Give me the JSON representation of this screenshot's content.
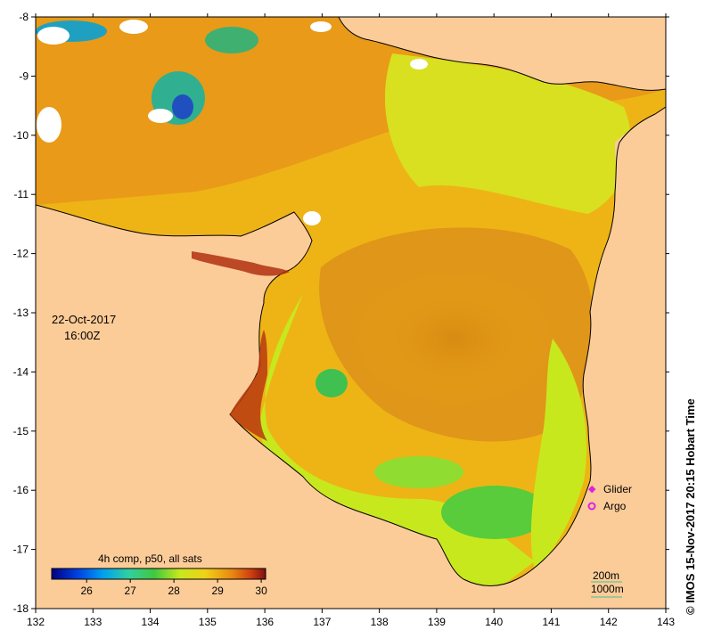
{
  "map": {
    "date": "22-Oct-2017",
    "time": "16:00Z",
    "credit": "© IMOS 15-Nov-2017 20:15 Hobart Time",
    "colorbar": {
      "title": "4h comp, p50, all sats",
      "ticks": [
        "26",
        "27",
        "28",
        "29",
        "30"
      ],
      "tick_values": [
        26,
        27,
        28,
        29,
        30
      ],
      "min": 25.2,
      "max": 30.1
    },
    "legend": {
      "glider": "Glider",
      "argo": "Argo",
      "glider_color": "#e020e0",
      "argo_color": "#e020e0"
    },
    "contours": {
      "shallow": "200m",
      "deep": "1000m",
      "contour_color": "#40c0a0"
    },
    "axes": {
      "lon_ticks": [
        "132",
        "133",
        "134",
        "135",
        "136",
        "137",
        "138",
        "139",
        "140",
        "141",
        "142",
        "143"
      ],
      "lon_values": [
        132,
        133,
        134,
        135,
        136,
        137,
        138,
        139,
        140,
        141,
        142,
        143
      ],
      "lat_ticks": [
        "-8",
        "-9",
        "-10",
        "-11",
        "-12",
        "-13",
        "-14",
        "-15",
        "-16",
        "-17",
        "-18"
      ],
      "lat_values": [
        -8,
        -9,
        -10,
        -11,
        -12,
        -13,
        -14,
        -15,
        -16,
        -17,
        -18
      ],
      "lon_range": [
        132,
        143
      ],
      "lat_range": [
        -18,
        -8
      ]
    },
    "colors": {
      "land": "#fccc98",
      "warm": "#e88a10",
      "mid": "#f0b414",
      "cool": "#c8e81e",
      "cold": "#40c840",
      "hot": "#a02810",
      "cloud": "#ffffff"
    }
  }
}
